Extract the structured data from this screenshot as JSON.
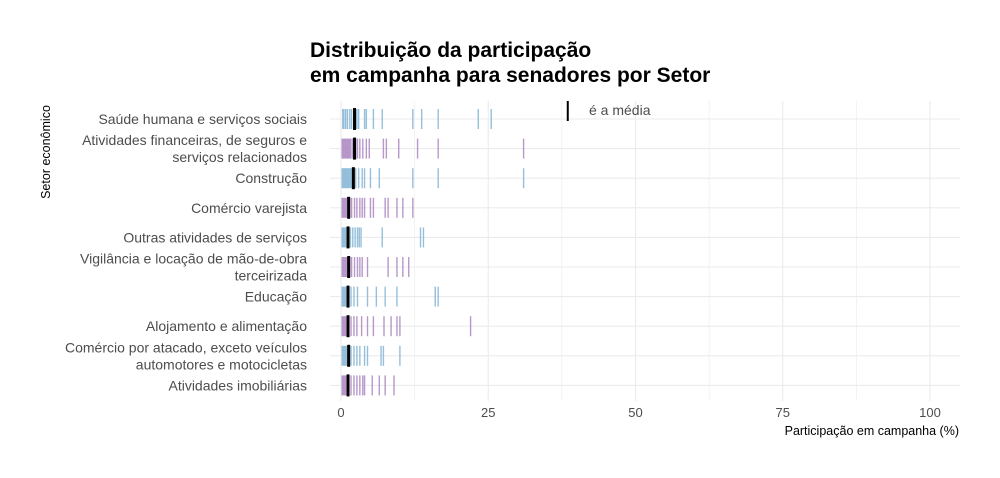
{
  "chart_data": {
    "type": "strip",
    "title_lines": [
      "Distribuição da participação",
      "em campanha para senadores por Setor"
    ],
    "xlabel": "Participação em campanha (%)",
    "ylabel": "Setor econômico",
    "xlim": [
      -2,
      105
    ],
    "xticks": [
      0,
      25,
      50,
      75,
      100
    ],
    "grid": true,
    "annotation": {
      "text": "é a média",
      "marker_x": 38.5
    },
    "colors": {
      "blue": "#8ab8d6",
      "purple": "#b08cc4",
      "mean": "#000000",
      "grid": "#ebebeb",
      "text": "#4d4d4d"
    },
    "categories": [
      {
        "label": [
          "Saúde humana e serviços sociais"
        ],
        "color": "blue",
        "mean": 2.3,
        "values": [
          0.3,
          0.5,
          0.8,
          1.1,
          1.5,
          1.8,
          2.2,
          2.5,
          2.7,
          3.0,
          4.0,
          4.3,
          5.5,
          7.0,
          12.2,
          13.7,
          16.5,
          23.3,
          25.5
        ]
      },
      {
        "label": [
          "Atividades financeiras, de seguros e",
          "serviços relacionados"
        ],
        "color": "purple",
        "mean": 2.3,
        "values": [
          0.2,
          0.4,
          0.6,
          0.8,
          1.0,
          1.2,
          1.4,
          1.6,
          1.9,
          2.2,
          2.5,
          2.8,
          3.2,
          3.7,
          4.3,
          4.8,
          7.2,
          7.7,
          9.8,
          13.0,
          16.5,
          31.0
        ]
      },
      {
        "label": [
          "Construção"
        ],
        "color": "blue",
        "mean": 2.1,
        "values": [
          0.2,
          0.4,
          0.6,
          0.8,
          1.0,
          1.2,
          1.4,
          1.6,
          1.8,
          2.0,
          2.2,
          2.5,
          3.0,
          3.6,
          4.0,
          5.0,
          6.5,
          12.2,
          16.5,
          31.0
        ]
      },
      {
        "label": [
          "Comércio varejista"
        ],
        "color": "purple",
        "mean": 1.3,
        "values": [
          0.2,
          0.4,
          0.6,
          0.8,
          1.0,
          1.2,
          1.5,
          1.8,
          2.3,
          2.7,
          3.2,
          3.6,
          4.0,
          5.0,
          5.5,
          7.5,
          8.0,
          9.5,
          10.5,
          12.2
        ]
      },
      {
        "label": [
          "Outras atividades de serviços"
        ],
        "color": "blue",
        "mean": 1.2,
        "values": [
          0.2,
          0.4,
          0.6,
          0.8,
          1.0,
          1.3,
          1.6,
          2.0,
          2.4,
          2.8,
          3.1,
          3.4,
          7.0,
          13.5,
          14.0
        ]
      },
      {
        "label": [
          "Vigilância e locação de mão-de-obra",
          "terceirizada"
        ],
        "color": "purple",
        "mean": 1.3,
        "values": [
          0.2,
          0.4,
          0.6,
          0.8,
          1.0,
          1.2,
          1.5,
          1.8,
          2.3,
          2.8,
          3.2,
          3.6,
          4.5,
          8.0,
          9.5,
          10.5,
          11.5
        ]
      },
      {
        "label": [
          "Educação"
        ],
        "color": "blue",
        "mean": 1.2,
        "values": [
          0.2,
          0.4,
          0.6,
          0.8,
          1.0,
          1.3,
          1.7,
          2.2,
          2.8,
          4.5,
          6.0,
          7.5,
          9.5,
          16.0,
          16.5
        ]
      },
      {
        "label": [
          "Alojamento e alimentação"
        ],
        "color": "purple",
        "mean": 1.2,
        "values": [
          0.2,
          0.4,
          0.6,
          0.8,
          1.0,
          1.3,
          1.7,
          2.2,
          2.7,
          3.5,
          4.5,
          5.5,
          7.3,
          8.5,
          9.5,
          10.0,
          22.0
        ]
      },
      {
        "label": [
          "Comércio por atacado, exceto veículos",
          "automotores e motocicletas"
        ],
        "color": "blue",
        "mean": 1.3,
        "values": [
          0.2,
          0.4,
          0.6,
          0.8,
          1.0,
          1.3,
          1.7,
          2.2,
          2.7,
          3.2,
          4.0,
          4.5,
          6.8,
          7.2,
          10.0
        ]
      },
      {
        "label": [
          "Atividades imobiliárias"
        ],
        "color": "purple",
        "mean": 1.2,
        "values": [
          0.2,
          0.4,
          0.6,
          0.8,
          1.0,
          1.3,
          1.7,
          2.2,
          2.7,
          3.2,
          3.7,
          4.0,
          5.3,
          6.5,
          7.5,
          9.0
        ]
      }
    ]
  }
}
